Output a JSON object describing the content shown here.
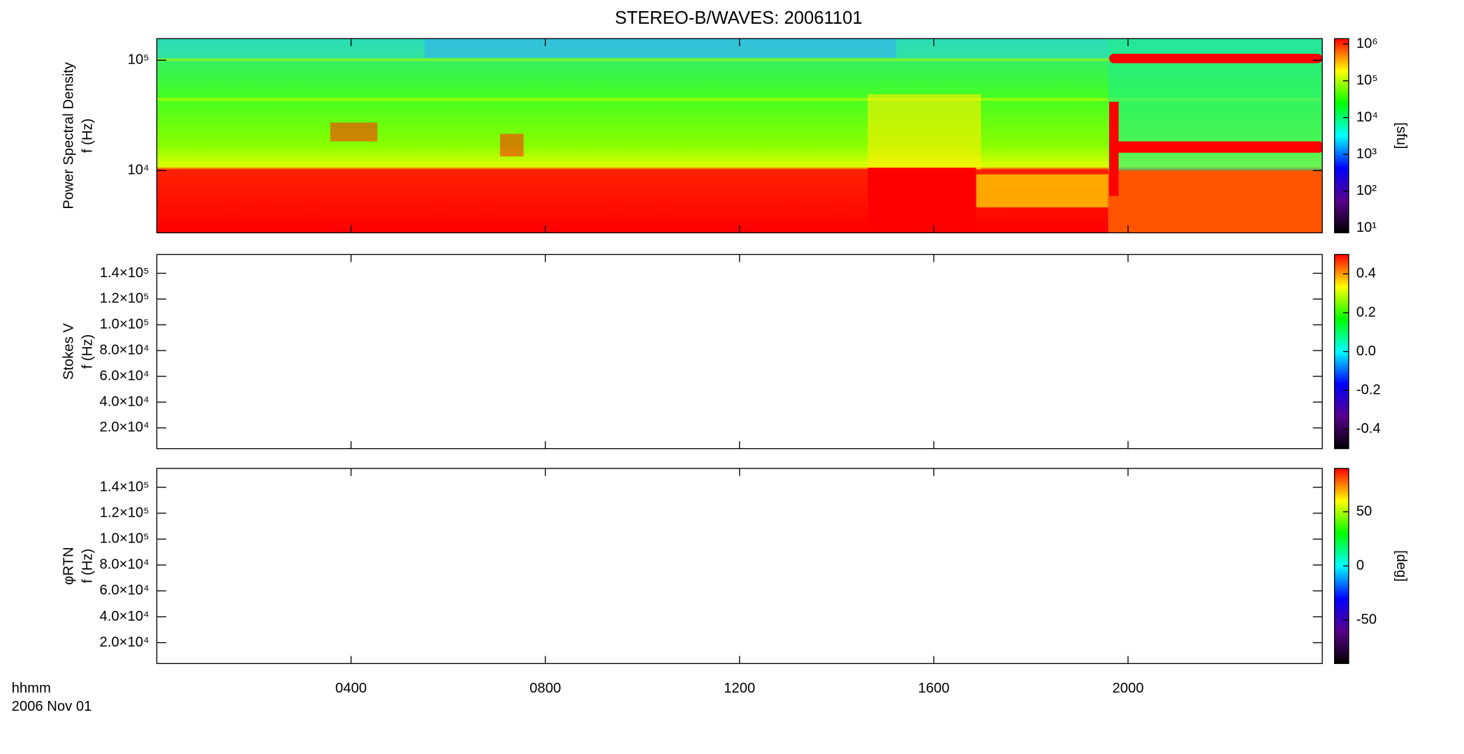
{
  "chart_data": [
    {
      "type": "spectrogram",
      "title": "STEREO-B/WAVES: 20061101",
      "ylabel": [
        "Power Spectral Density",
        "f (Hz)"
      ],
      "yscale": "log",
      "ylim": [
        2730,
        157000
      ],
      "yticks": [
        {
          "value": 10000,
          "label": "10⁴"
        },
        {
          "value": 100000,
          "label": "10⁵"
        }
      ],
      "colorbar": {
        "label": "[sfu]",
        "scale": "log",
        "lim": [
          7.4,
          1400000
        ],
        "ticks": [
          {
            "value": 10,
            "label": "10¹"
          },
          {
            "value": 100,
            "label": "10²"
          },
          {
            "value": 1000,
            "label": "10³"
          },
          {
            "value": 10000,
            "label": "10⁴"
          },
          {
            "value": 100000,
            "label": "10⁵"
          },
          {
            "value": 1000000,
            "label": "10⁶"
          }
        ],
        "colors": [
          "#000000",
          "#5a008c",
          "#0000ff",
          "#00ffff",
          "#00ff00",
          "#ffff00",
          "#ff0000"
        ]
      }
    },
    {
      "type": "spectrogram",
      "ylabel": [
        "Stokes V",
        "f (Hz)"
      ],
      "yscale": "linear",
      "ylim": [
        3900,
        154600
      ],
      "yticks": [
        {
          "value": 20000,
          "label": "2.0×10⁴"
        },
        {
          "value": 40000,
          "label": "4.0×10⁴"
        },
        {
          "value": 60000,
          "label": "6.0×10⁴"
        },
        {
          "value": 80000,
          "label": "8.0×10⁴"
        },
        {
          "value": 100000,
          "label": "1.0×10⁵"
        },
        {
          "value": 120000,
          "label": "1.2×10⁵"
        },
        {
          "value": 140000,
          "label": "1.4×10⁵"
        }
      ],
      "colorbar": {
        "scale": "linear",
        "lim": [
          -0.5,
          0.5
        ],
        "ticks": [
          -0.4,
          -0.2,
          {
            "value": 0,
            "label": "0.0"
          },
          0.2,
          0.4
        ],
        "colors": [
          "#000000",
          "#5a008c",
          "#0000ff",
          "#00ffff",
          "#00ff00",
          "#ffff00",
          "#ff0000"
        ]
      }
    },
    {
      "type": "spectrogram",
      "ylabel": [
        "φRTN",
        "f (Hz)"
      ],
      "yscale": "linear",
      "ylim": [
        3900,
        154600
      ],
      "yticks": [
        {
          "value": 20000,
          "label": "2.0×10⁴"
        },
        {
          "value": 40000,
          "label": "4.0×10⁴"
        },
        {
          "value": 60000,
          "label": "6.0×10⁴"
        },
        {
          "value": 80000,
          "label": "8.0×10⁴"
        },
        {
          "value": 100000,
          "label": "1.0×10⁵"
        },
        {
          "value": 120000,
          "label": "1.2×10⁵"
        },
        {
          "value": 140000,
          "label": "1.4×10⁵"
        }
      ],
      "colorbar": {
        "label": "[deg]",
        "scale": "linear",
        "lim": [
          -90,
          90
        ],
        "ticks": [
          -50,
          0,
          50
        ],
        "colors": [
          "#000000",
          "#5a008c",
          "#0000ff",
          "#00ffff",
          "#00ff00",
          "#ffff00",
          "#ff0000"
        ]
      },
      "xlim": [
        0,
        24
      ],
      "xticks": [
        {
          "value": 4,
          "label": "0400"
        },
        {
          "value": 8,
          "label": "0800"
        },
        {
          "value": 12,
          "label": "1200"
        },
        {
          "value": 16,
          "label": "1600"
        },
        {
          "value": 20,
          "label": "2000"
        }
      ],
      "xlabel": [
        "hhmm",
        "2006 Nov 01"
      ]
    }
  ]
}
